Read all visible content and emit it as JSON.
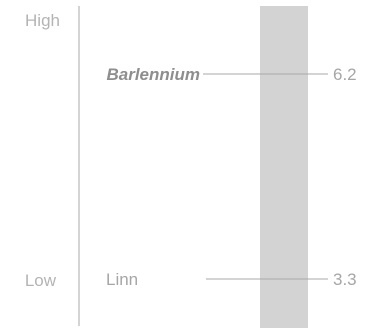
{
  "chart_data": {
    "type": "slope-scale",
    "scale_labels": {
      "high": "High",
      "low": "Low"
    },
    "band_color": "#d3d3d3",
    "items": [
      {
        "name": "Barlennium",
        "value": 6.2,
        "value_label": "6.2",
        "highlight": true
      },
      {
        "name": "Linn",
        "value": 3.3,
        "value_label": "3.3",
        "highlight": false
      }
    ]
  }
}
